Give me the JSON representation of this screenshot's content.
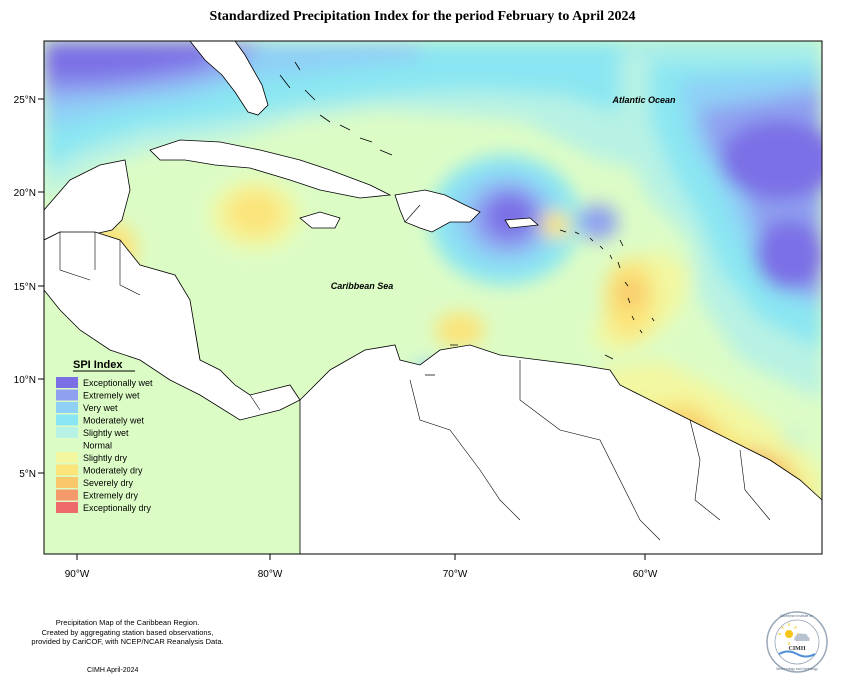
{
  "title": "Standardized Precipitation Index for the period February to April 2024",
  "map": {
    "x_ticks": [
      "90°W",
      "80°W",
      "70°W",
      "60°W"
    ],
    "y_ticks": [
      "25°N",
      "20°N",
      "15°N",
      "10°N",
      "5°N"
    ],
    "labels": {
      "ocean": "Atlantic Ocean",
      "sea": "Caribbean Sea"
    }
  },
  "legend": {
    "title": "SPI Index",
    "items": [
      {
        "label": "Exceptionally wet",
        "color": "#7b6fe6"
      },
      {
        "label": "Extremely wet",
        "color": "#8fa0f0"
      },
      {
        "label": "Very wet",
        "color": "#8fd0f6"
      },
      {
        "label": "Moderately wet",
        "color": "#8ae6f2"
      },
      {
        "label": "Slightly wet",
        "color": "#b8f2e4"
      },
      {
        "label": "Normal",
        "color": "#dcfcc6"
      },
      {
        "label": "Slightly dry",
        "color": "#f2f7a0"
      },
      {
        "label": "Moderately dry",
        "color": "#fbe47a"
      },
      {
        "label": "Severely dry",
        "color": "#f8c86a"
      },
      {
        "label": "Extremely dry",
        "color": "#f59a6a"
      },
      {
        "label": "Exceptionally dry",
        "color": "#ef6a6a"
      }
    ]
  },
  "credits": {
    "line1": "Precipitation Map of the Caribbean Region.",
    "line2": "Created by aggregating station based observations,",
    "line3": "provided by CariCOF, with NCEP/NCAR Reanalysis Data.",
    "date": "CIMH April-2024"
  },
  "logo": {
    "top_text": "Caribbean Institute for",
    "center_text": "CIMH",
    "bottom_text": "Meteorology and Hydrology"
  }
}
